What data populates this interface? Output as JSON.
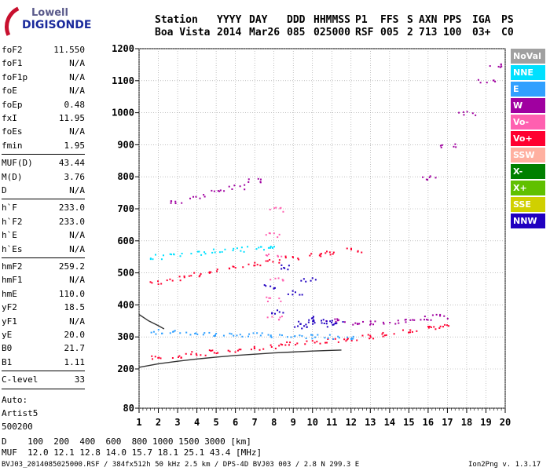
{
  "logo": {
    "line1": "Lowell",
    "line2": "DIGISONDE"
  },
  "header": {
    "labels": [
      "Station",
      "YYYY",
      "DAY",
      "DDD",
      "HHMMSS",
      "P1",
      "FFS",
      "S",
      "AXN",
      "PPS",
      "IGA",
      "PS"
    ],
    "values": [
      "Boa Vista",
      "2014",
      "Mar26",
      "085",
      "025000",
      "RSF",
      "005",
      "2",
      "713",
      "100",
      "03+",
      "C0"
    ]
  },
  "params": {
    "group1": [
      {
        "k": "foF2",
        "v": "11.550"
      },
      {
        "k": "foF1",
        "v": "N/A"
      },
      {
        "k": "foF1p",
        "v": "N/A"
      },
      {
        "k": "foE",
        "v": "N/A"
      },
      {
        "k": "foEp",
        "v": "0.48"
      },
      {
        "k": "fxI",
        "v": "11.95"
      },
      {
        "k": "foEs",
        "v": "N/A"
      },
      {
        "k": "fmin",
        "v": "1.95"
      }
    ],
    "group2": [
      {
        "k": "MUF(D)",
        "v": "43.44"
      },
      {
        "k": "M(D)",
        "v": "3.76"
      },
      {
        "k": "D",
        "v": "N/A"
      }
    ],
    "group3": [
      {
        "k": "h`F",
        "v": "233.0"
      },
      {
        "k": "h`F2",
        "v": "233.0"
      },
      {
        "k": "h`E",
        "v": "N/A"
      },
      {
        "k": "h`Es",
        "v": "N/A"
      }
    ],
    "group4": [
      {
        "k": "hmF2",
        "v": "259.2"
      },
      {
        "k": "hmF1",
        "v": "N/A"
      },
      {
        "k": "hmE",
        "v": "110.0"
      },
      {
        "k": "yF2",
        "v": "18.5"
      },
      {
        "k": "yF1",
        "v": "N/A"
      },
      {
        "k": "yE",
        "v": "20.0"
      },
      {
        "k": "B0",
        "v": "21.7"
      },
      {
        "k": "B1",
        "v": "1.11"
      }
    ],
    "group5": [
      {
        "k": "C-level",
        "v": "33"
      }
    ]
  },
  "auto": [
    "Auto:",
    "Artist5",
    "500200"
  ],
  "legend": [
    {
      "label": "NoVal",
      "color": "#a0a0a0"
    },
    {
      "label": "NNE",
      "color": "#00e0ff"
    },
    {
      "label": "E",
      "color": "#30a0ff"
    },
    {
      "label": "W",
      "color": "#a000a0"
    },
    {
      "label": "Vo-",
      "color": "#ff60b0"
    },
    {
      "label": "Vo+",
      "color": "#ff0030"
    },
    {
      "label": "SSW",
      "color": "#ffb0a0"
    },
    {
      "label": "X-",
      "color": "#008000"
    },
    {
      "label": "X+",
      "color": "#60c000"
    },
    {
      "label": "SSE",
      "color": "#d0d000"
    },
    {
      "label": "NNW",
      "color": "#2000c0"
    }
  ],
  "muf_table": {
    "row1": "D    100  200  400  600  800 1000 1500 3000 [km]",
    "row2": "MUF  12.0 12.1 12.8 14.0 15.7 18.1 25.1 43.4 [MHz]"
  },
  "footer": {
    "left": "BVJ03_2014085025000.RSF / 384fx512h 50 kHz 2.5 km / DPS-4D BVJ03 003 / 2.8 N 299.3 E",
    "right": "Ion2Png v. 1.3.17"
  },
  "chart_data": {
    "type": "scatter",
    "xlim": [
      1,
      20
    ],
    "ylim": [
      80,
      1200
    ],
    "x_ticks": [
      1,
      2,
      3,
      4,
      5,
      6,
      7,
      8,
      9,
      10,
      11,
      12,
      13,
      14,
      15,
      16,
      17,
      18,
      19,
      20
    ],
    "y_ticks": [
      80,
      200,
      300,
      400,
      500,
      600,
      700,
      800,
      900,
      1000,
      1100,
      1200
    ],
    "grid": true,
    "series": [
      {
        "color": "#ff0030",
        "x": [
          2,
          3,
          4,
          5,
          6,
          7,
          8,
          9,
          10,
          11,
          12,
          13,
          14,
          15,
          16,
          16.6
        ],
        "y": [
          237,
          243,
          249,
          255,
          261,
          267,
          273,
          279,
          285,
          291,
          297,
          303,
          310,
          318,
          328,
          336
        ]
      },
      {
        "color": "#30a0ff",
        "x": [
          2,
          3,
          4,
          5,
          6,
          7,
          8,
          9,
          10,
          11,
          12
        ],
        "y": [
          318,
          316,
          314,
          312,
          310,
          308,
          306,
          304,
          303,
          302,
          301
        ]
      },
      {
        "color": "#ff0030",
        "x": [
          2,
          3,
          4,
          5,
          6,
          7,
          8,
          9,
          10,
          11,
          12.2
        ],
        "y": [
          474,
          485,
          496,
          507,
          518,
          529,
          540,
          550,
          558,
          565,
          572
        ]
      },
      {
        "color": "#00e0ff",
        "x": [
          2,
          3,
          4,
          5,
          6,
          7,
          8
        ],
        "y": [
          552,
          560,
          565,
          570,
          575,
          580,
          585
        ]
      },
      {
        "color": "#a000a0",
        "x": [
          3,
          4,
          5,
          6,
          7
        ],
        "y": [
          725,
          740,
          755,
          770,
          790
        ]
      },
      {
        "color": "#2000c0",
        "x": [
          7.8,
          8.2,
          8.6,
          9,
          9.4,
          9.8
        ],
        "y": [
          460,
          380,
          520,
          440,
          330,
          480
        ]
      },
      {
        "color": "#a000a0",
        "x": [
          11,
          12,
          13,
          14,
          15,
          16,
          16.6
        ],
        "y": [
          355,
          345,
          345,
          350,
          355,
          360,
          365
        ]
      },
      {
        "color": "#2000c0",
        "x": [
          9.6,
          10,
          10.4,
          10.8,
          11.2
        ],
        "y": [
          345,
          360,
          350,
          340,
          348
        ]
      },
      {
        "color": "#ff60b0",
        "x": [
          8,
          8,
          8,
          8,
          8,
          8
        ],
        "y": [
          700,
          620,
          560,
          480,
          420,
          360
        ]
      },
      {
        "color": "#a000a0",
        "x": [
          16,
          17,
          18,
          19,
          19.5
        ],
        "y": [
          800,
          900,
          1000,
          1100,
          1150
        ]
      }
    ],
    "curve": {
      "color": "#333333",
      "x": [
        1,
        2,
        3,
        4,
        5,
        6,
        7,
        8,
        9,
        10,
        11,
        11.5
      ],
      "y": [
        205,
        216,
        224,
        231,
        237,
        242,
        246,
        250,
        253,
        256,
        258,
        259
      ]
    },
    "curve2": {
      "color": "#333333",
      "x": [
        1,
        1.5,
        2,
        2.3
      ],
      "y": [
        370,
        350,
        335,
        325
      ]
    }
  }
}
